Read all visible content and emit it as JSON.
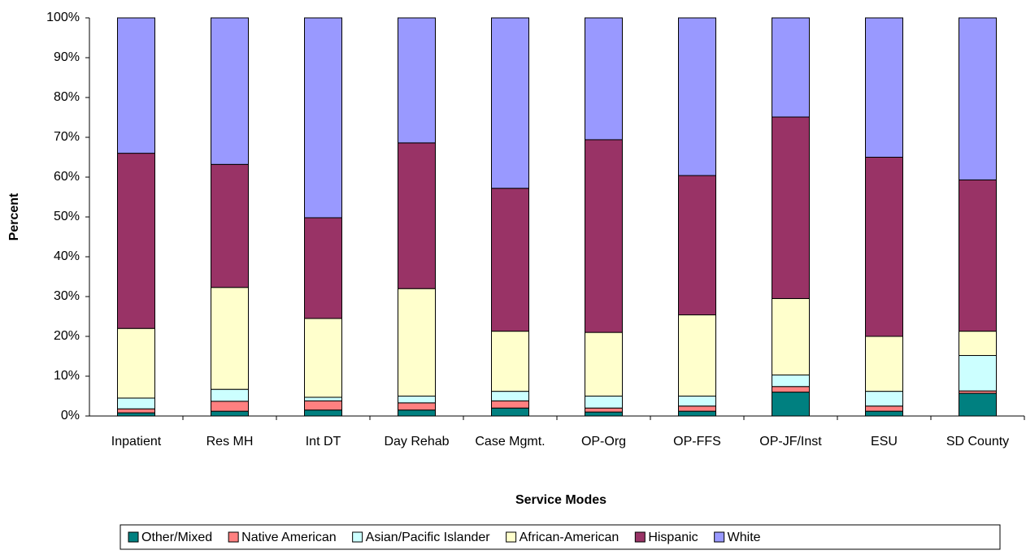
{
  "chart_data": {
    "type": "stacked_bar",
    "x_label": "Service Modes",
    "y_label": "Percent",
    "categories": [
      "Inpatient",
      "Res MH",
      "Int DT",
      "Day Rehab",
      "Case Mgmt.",
      "OP-Org",
      "OP-FFS",
      "OP-JF/Inst",
      "ESU",
      "SD County"
    ],
    "series": [
      {
        "name": "Other/Mixed",
        "color": "#008080",
        "values": [
          0.8,
          1.2,
          1.5,
          1.5,
          2.0,
          1.0,
          1.2,
          6.0,
          1.2,
          5.7
        ]
      },
      {
        "name": "Native American",
        "color": "#ff8080",
        "values": [
          1.0,
          2.5,
          2.3,
          1.8,
          1.8,
          1.0,
          1.3,
          1.4,
          1.3,
          0.6
        ]
      },
      {
        "name": "Asian/Pacific Islander",
        "color": "#ccffff",
        "values": [
          2.7,
          3.0,
          0.9,
          1.7,
          2.4,
          3.0,
          2.5,
          2.9,
          3.7,
          8.9
        ]
      },
      {
        "name": "African-American",
        "color": "#ffffcc",
        "values": [
          17.5,
          25.6,
          19.8,
          27.0,
          15.1,
          16.0,
          20.4,
          19.2,
          13.8,
          6.1
        ]
      },
      {
        "name": "Hispanic",
        "color": "#993366",
        "values": [
          44.0,
          30.9,
          25.3,
          36.6,
          35.9,
          48.4,
          35.0,
          45.6,
          45.0,
          38.0
        ]
      },
      {
        "name": "White",
        "color": "#9999ff",
        "values": [
          34.0,
          36.8,
          50.2,
          31.4,
          42.8,
          30.6,
          39.6,
          24.9,
          35.0,
          40.7
        ]
      }
    ],
    "ylim": [
      0,
      100
    ],
    "yticks": [
      {
        "value": 0,
        "label": "0%"
      },
      {
        "value": 10,
        "label": "10%"
      },
      {
        "value": 20,
        "label": "20%"
      },
      {
        "value": 30,
        "label": "30%"
      },
      {
        "value": 40,
        "label": "40%"
      },
      {
        "value": 50,
        "label": "50%"
      },
      {
        "value": 60,
        "label": "60%"
      },
      {
        "value": 70,
        "label": "70%"
      },
      {
        "value": 80,
        "label": "80%"
      },
      {
        "value": 90,
        "label": "90%"
      },
      {
        "value": 100,
        "label": "100%"
      }
    ],
    "grid": false,
    "legend": "bottom"
  }
}
